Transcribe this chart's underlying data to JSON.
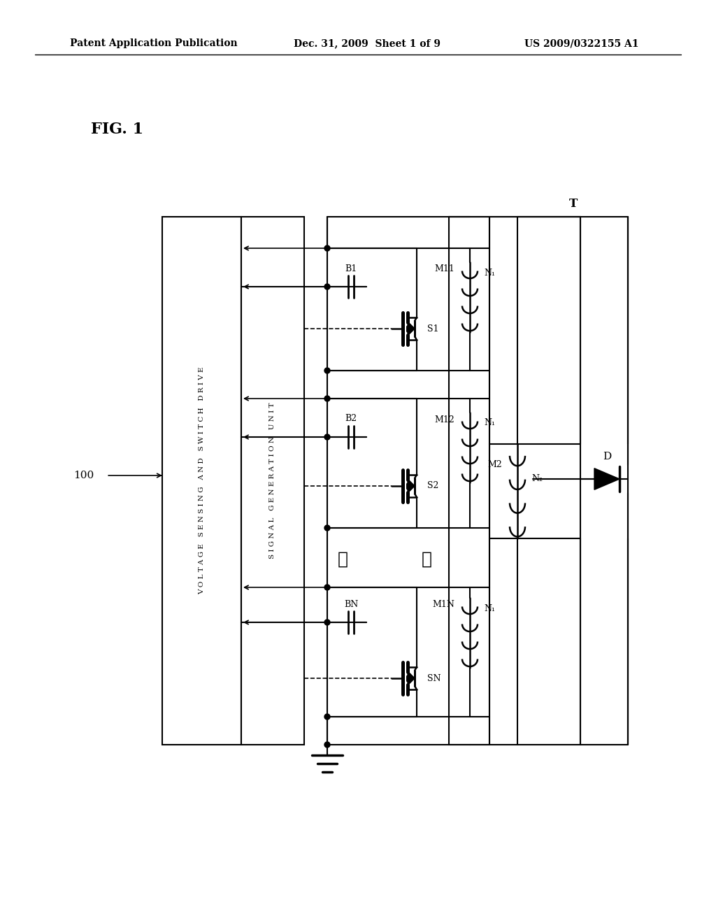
{
  "title_header": "Patent Application Publication",
  "date_header": "Dec. 31, 2009  Sheet 1 of 9",
  "patent_header": "US 2009/0322155 A1",
  "fig_label": "FIG. 1",
  "bg_color": "#ffffff"
}
